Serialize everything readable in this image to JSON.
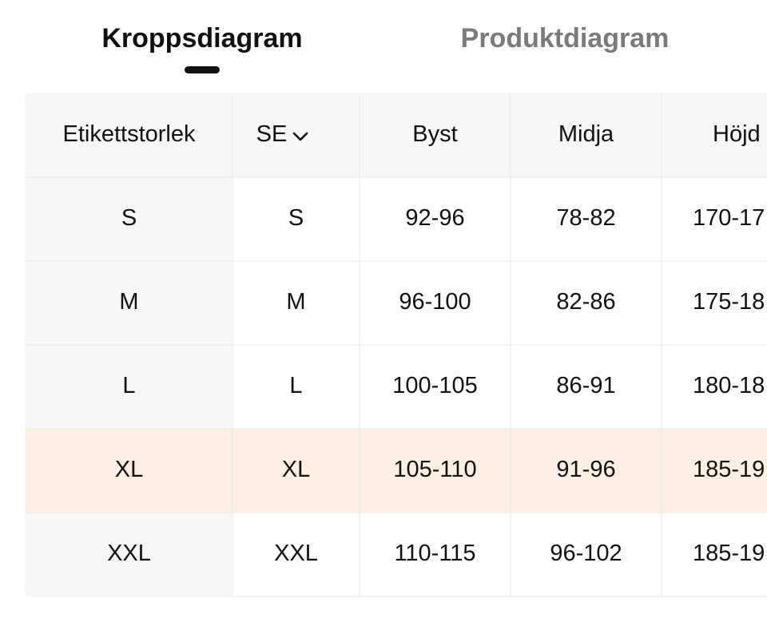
{
  "tabs": [
    "Kroppsdiagram",
    "Produktdiagram"
  ],
  "table": {
    "headers": [
      "Etikettstorlek",
      "SE",
      "Byst",
      "Midja",
      "Höjd"
    ],
    "rows": [
      [
        "S",
        "S",
        "92-96",
        "78-82",
        "170-17"
      ],
      [
        "M",
        "M",
        "96-100",
        "82-86",
        "175-18"
      ],
      [
        "L",
        "L",
        "100-105",
        "86-91",
        "180-18"
      ],
      [
        "XL",
        "XL",
        "105-110",
        "91-96",
        "185-19"
      ],
      [
        "XXL",
        "XXL",
        "110-115",
        "96-102",
        "185-19"
      ]
    ]
  }
}
